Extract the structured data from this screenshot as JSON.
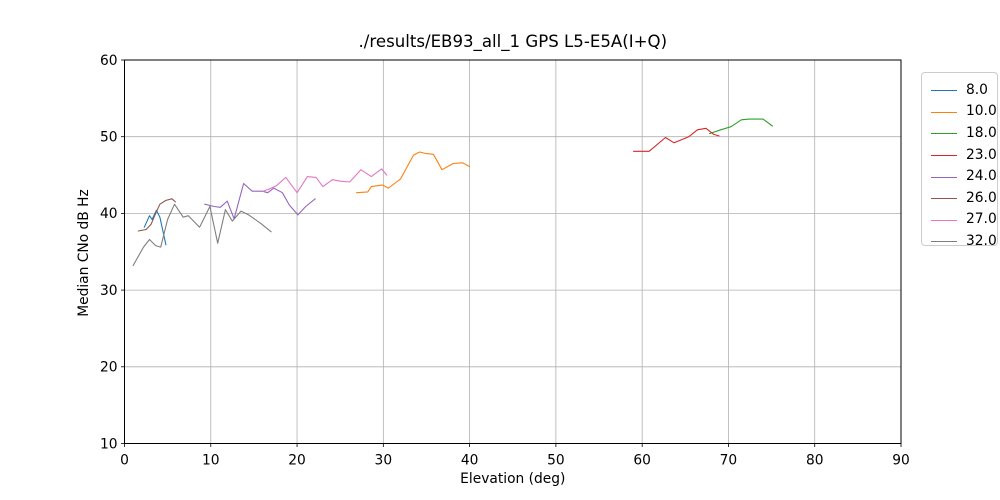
{
  "figure": {
    "title": "./results/EB93_all_1 GPS L5-E5A(I+Q)",
    "xlabel": "Elevation (deg)",
    "ylabel": "Median CNo dB Hz"
  },
  "chart_data": {
    "type": "line",
    "title": "./results/EB93_all_1 GPS L5-E5A(I+Q)",
    "xlabel": "Elevation (deg)",
    "ylabel": "Median CNo dB Hz",
    "xlim": [
      0,
      90
    ],
    "ylim": [
      10,
      60
    ],
    "xticks": [
      0,
      10,
      20,
      30,
      40,
      50,
      60,
      70,
      80,
      90
    ],
    "yticks": [
      10,
      20,
      30,
      40,
      50,
      60
    ],
    "grid": true,
    "grid_color": "#b0b0b0",
    "legend_position": "outside-right",
    "series": [
      {
        "name": "8.0",
        "color": "#1f77b4",
        "points": [
          [
            2.3,
            38.2
          ],
          [
            2.9,
            39.7
          ],
          [
            3.2,
            39.2
          ],
          [
            3.7,
            40.4
          ],
          [
            4.1,
            39.5
          ],
          [
            4.8,
            35.9
          ]
        ]
      },
      {
        "name": "10.0",
        "color": "#ff7f0e",
        "points": [
          [
            26.9,
            42.7
          ],
          [
            28.2,
            42.8
          ],
          [
            28.6,
            43.5
          ],
          [
            29.9,
            43.7
          ],
          [
            30.6,
            43.3
          ],
          [
            31.3,
            43.9
          ],
          [
            32.0,
            44.5
          ],
          [
            33.5,
            47.6
          ],
          [
            34.2,
            48.0
          ],
          [
            35.0,
            47.8
          ],
          [
            35.8,
            47.7
          ],
          [
            36.8,
            45.7
          ],
          [
            38.1,
            46.5
          ],
          [
            39.2,
            46.6
          ],
          [
            40.0,
            46.1
          ]
        ]
      },
      {
        "name": "18.0",
        "color": "#2ca02c",
        "points": [
          [
            67.8,
            50.4
          ],
          [
            69.1,
            50.9
          ],
          [
            70.3,
            51.3
          ],
          [
            71.5,
            52.2
          ],
          [
            72.4,
            52.3
          ],
          [
            74.0,
            52.3
          ],
          [
            75.1,
            51.4
          ]
        ]
      },
      {
        "name": "23.0",
        "color": "#d62728",
        "points": [
          [
            59.0,
            48.1
          ],
          [
            60.8,
            48.1
          ],
          [
            62.7,
            49.9
          ],
          [
            63.7,
            49.2
          ],
          [
            65.4,
            50.0
          ],
          [
            66.4,
            50.9
          ],
          [
            67.4,
            51.1
          ],
          [
            68.3,
            50.3
          ],
          [
            68.9,
            50.1
          ]
        ]
      },
      {
        "name": "24.0",
        "color": "#9467bd",
        "points": [
          [
            9.3,
            41.2
          ],
          [
            10.4,
            40.9
          ],
          [
            11.1,
            40.8
          ],
          [
            11.9,
            41.6
          ],
          [
            12.7,
            39.3
          ],
          [
            13.8,
            43.9
          ],
          [
            14.8,
            42.9
          ],
          [
            16.0,
            42.9
          ],
          [
            16.6,
            42.7
          ],
          [
            17.3,
            43.3
          ],
          [
            18.3,
            42.7
          ],
          [
            19.1,
            41.1
          ],
          [
            20.1,
            39.8
          ],
          [
            21.0,
            40.9
          ],
          [
            22.1,
            41.9
          ]
        ]
      },
      {
        "name": "26.0",
        "color": "#8c564b",
        "points": [
          [
            1.6,
            37.7
          ],
          [
            2.5,
            37.9
          ],
          [
            3.1,
            38.6
          ],
          [
            3.6,
            40.0
          ],
          [
            4.1,
            41.2
          ],
          [
            4.8,
            41.7
          ],
          [
            5.5,
            41.9
          ],
          [
            5.9,
            41.5
          ]
        ]
      },
      {
        "name": "27.0",
        "color": "#e377c2",
        "points": [
          [
            16.1,
            42.9
          ],
          [
            17.0,
            43.3
          ],
          [
            17.6,
            43.6
          ],
          [
            18.7,
            44.7
          ],
          [
            20.0,
            42.7
          ],
          [
            21.2,
            44.8
          ],
          [
            22.2,
            44.7
          ],
          [
            23.0,
            43.5
          ],
          [
            24.1,
            44.4
          ],
          [
            25.0,
            44.2
          ],
          [
            26.1,
            44.1
          ],
          [
            27.4,
            45.7
          ],
          [
            28.6,
            44.8
          ],
          [
            29.8,
            45.8
          ],
          [
            30.4,
            45.0
          ]
        ]
      },
      {
        "name": "32.0",
        "color": "#7f7f7f",
        "points": [
          [
            1.0,
            33.2
          ],
          [
            2.2,
            35.6
          ],
          [
            2.9,
            36.6
          ],
          [
            3.6,
            35.8
          ],
          [
            4.2,
            35.6
          ],
          [
            5.0,
            39.2
          ],
          [
            5.8,
            41.2
          ],
          [
            6.8,
            39.5
          ],
          [
            7.4,
            39.7
          ],
          [
            8.7,
            38.2
          ],
          [
            9.9,
            40.9
          ],
          [
            10.8,
            36.1
          ],
          [
            11.7,
            40.5
          ],
          [
            12.5,
            39.0
          ],
          [
            13.5,
            40.3
          ],
          [
            14.4,
            39.8
          ],
          [
            15.8,
            38.7
          ],
          [
            17.0,
            37.6
          ]
        ]
      }
    ]
  }
}
